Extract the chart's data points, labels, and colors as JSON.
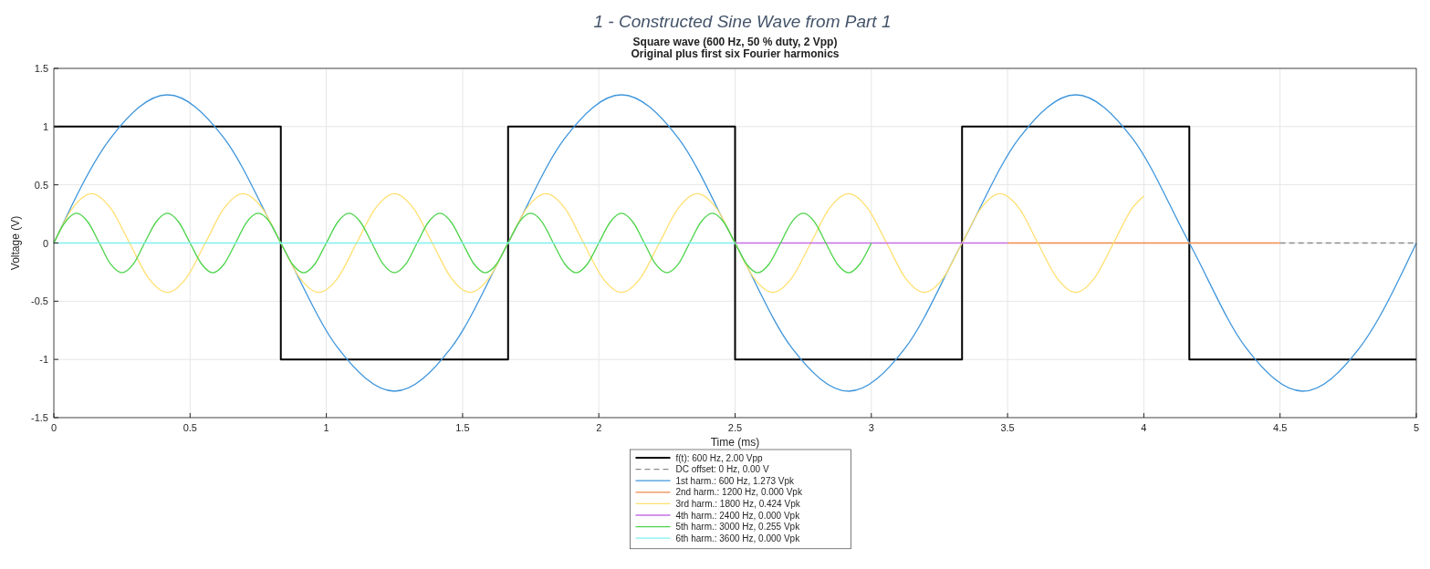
{
  "chart_data": {
    "type": "line",
    "title": "1 - Constructed Sine Wave from Part 1",
    "subtitle": "Square wave (600 Hz, 50 % duty, 2 Vpp)\nOriginal plus first six Fourier harmonics",
    "xlabel": "Time (ms)",
    "ylabel": "Voltage (V)",
    "xlim": [
      0,
      5
    ],
    "ylim": [
      -1.5,
      1.5
    ],
    "xticks": [
      0,
      0.5,
      1,
      1.5,
      2,
      2.5,
      3,
      3.5,
      4,
      4.5,
      5
    ],
    "yticks": [
      -1.5,
      -1,
      -0.5,
      0,
      0.5,
      1,
      1.5
    ],
    "grid": true,
    "legend": "bottom",
    "series": [
      {
        "name": "f(t): 600 Hz, 2.00 Vpp",
        "type": "step",
        "color": "#000000",
        "x": [
          0,
          0.833,
          1.667,
          2.5,
          3.333,
          4.167,
          5
        ],
        "values": [
          1,
          -1,
          1,
          -1,
          1,
          -1,
          -1
        ]
      },
      {
        "name": "DC offset: 0 Hz, 0.00 V",
        "color": "#8c8c8c",
        "line_style": "dashed",
        "x": [
          4.5,
          5
        ],
        "values": [
          0,
          0
        ]
      },
      {
        "name": "1st harm.: 600 Hz, 1.273 Vpk",
        "color": "#3f96dc",
        "x": [
          0,
          0.208,
          0.417,
          0.625,
          0.833,
          1.042,
          1.25,
          1.458,
          1.667,
          1.875,
          2.083,
          2.292,
          2.5,
          2.708,
          2.917,
          3.125,
          3.333,
          3.542,
          3.75,
          3.958,
          4.167,
          4.375,
          4.583,
          4.792,
          5
        ],
        "values": [
          0,
          0.9,
          1.273,
          0.9,
          0,
          -0.9,
          -1.273,
          -0.9,
          0,
          0.9,
          1.273,
          0.9,
          0,
          -0.9,
          -1.273,
          -0.9,
          0,
          0.9,
          1.273,
          0.9,
          0,
          -0.9,
          -1.273,
          -0.9,
          0
        ]
      },
      {
        "name": "2nd harm.: 1200 Hz, 0.000 Vpk",
        "color": "#f0894a",
        "x": [
          3.5,
          4.5
        ],
        "values": [
          0,
          0
        ]
      },
      {
        "name": "3rd harm.: 1800 Hz, 0.424 Vpk",
        "color": "#ffe070",
        "x": [
          0,
          0.069,
          0.139,
          0.208,
          0.278,
          0.347,
          0.417,
          0.486,
          0.556,
          0.625,
          0.694,
          0.764,
          0.833,
          0.903,
          0.972,
          1.042,
          1.111,
          1.181,
          1.25,
          1.319,
          1.389,
          1.458,
          1.528,
          1.597,
          1.667,
          1.736,
          1.806,
          1.875,
          1.944,
          2.014,
          2.083,
          2.153,
          2.222,
          2.292,
          2.361,
          2.431,
          2.5,
          2.569,
          2.639,
          2.708,
          2.778,
          2.847,
          2.917,
          2.986,
          3.056,
          3.125,
          3.194,
          3.264,
          3.333,
          3.403,
          3.472,
          3.542,
          3.611,
          3.681,
          3.75,
          3.819,
          3.889,
          3.958,
          4
        ],
        "values": [
          0,
          0.3,
          0.424,
          0.3,
          0,
          -0.3,
          -0.424,
          -0.3,
          0,
          0.3,
          0.424,
          0.3,
          0,
          -0.3,
          -0.424,
          -0.3,
          0,
          0.3,
          0.424,
          0.3,
          0,
          -0.3,
          -0.424,
          -0.3,
          0,
          0.3,
          0.424,
          0.3,
          0,
          -0.3,
          -0.424,
          -0.3,
          0,
          0.3,
          0.424,
          0.3,
          0,
          -0.3,
          -0.424,
          -0.3,
          0,
          0.3,
          0.424,
          0.3,
          0,
          -0.3,
          -0.424,
          -0.3,
          0,
          0.3,
          0.424,
          0.3,
          0,
          -0.3,
          -0.424,
          -0.3,
          0,
          0.3,
          0.403
        ]
      },
      {
        "name": "4th harm.: 2400 Hz, 0.000 Vpk",
        "color": "#c46ee6",
        "x": [
          2.5,
          3.5
        ],
        "values": [
          0,
          0
        ]
      },
      {
        "name": "5th harm.: 3000 Hz, 0.255 Vpk",
        "color": "#4cd44a",
        "x": [
          0,
          0.042,
          0.083,
          0.125,
          0.167,
          0.208,
          0.25,
          0.292,
          0.333,
          0.375,
          0.417,
          0.458,
          0.5,
          0.542,
          0.583,
          0.625,
          0.667,
          0.708,
          0.75,
          0.792,
          0.833,
          0.875,
          0.917,
          0.958,
          1,
          1.042,
          1.083,
          1.125,
          1.167,
          1.208,
          1.25,
          1.292,
          1.333,
          1.375,
          1.417,
          1.458,
          1.5,
          1.542,
          1.583,
          1.625,
          1.667,
          1.708,
          1.75,
          1.792,
          1.833,
          1.875,
          1.917,
          1.958,
          2,
          2.042,
          2.083,
          2.125,
          2.167,
          2.208,
          2.25,
          2.292,
          2.333,
          2.375,
          2.417,
          2.458,
          2.5,
          2.542,
          2.583,
          2.625,
          2.667,
          2.708,
          2.75,
          2.792,
          2.833,
          2.875,
          2.917,
          2.958,
          3
        ],
        "values": [
          0,
          0.18,
          0.255,
          0.18,
          0,
          -0.18,
          -0.255,
          -0.18,
          0,
          0.18,
          0.255,
          0.18,
          0,
          -0.18,
          -0.255,
          -0.18,
          0,
          0.18,
          0.255,
          0.18,
          0,
          -0.18,
          -0.255,
          -0.18,
          0,
          0.18,
          0.255,
          0.18,
          0,
          -0.18,
          -0.255,
          -0.18,
          0,
          0.18,
          0.255,
          0.18,
          0,
          -0.18,
          -0.255,
          -0.18,
          0,
          0.18,
          0.255,
          0.18,
          0,
          -0.18,
          -0.255,
          -0.18,
          0,
          0.18,
          0.255,
          0.18,
          0,
          -0.18,
          -0.255,
          -0.18,
          0,
          0.18,
          0.255,
          0.18,
          0,
          -0.18,
          -0.255,
          -0.18,
          0,
          0.18,
          0.255,
          0.18,
          0,
          -0.18,
          -0.255,
          -0.18,
          0
        ]
      },
      {
        "name": "6th harm.: 3600 Hz, 0.000 Vpk",
        "color": "#80f0f0",
        "x": [
          0,
          2.5
        ],
        "values": [
          0,
          0
        ]
      }
    ]
  }
}
